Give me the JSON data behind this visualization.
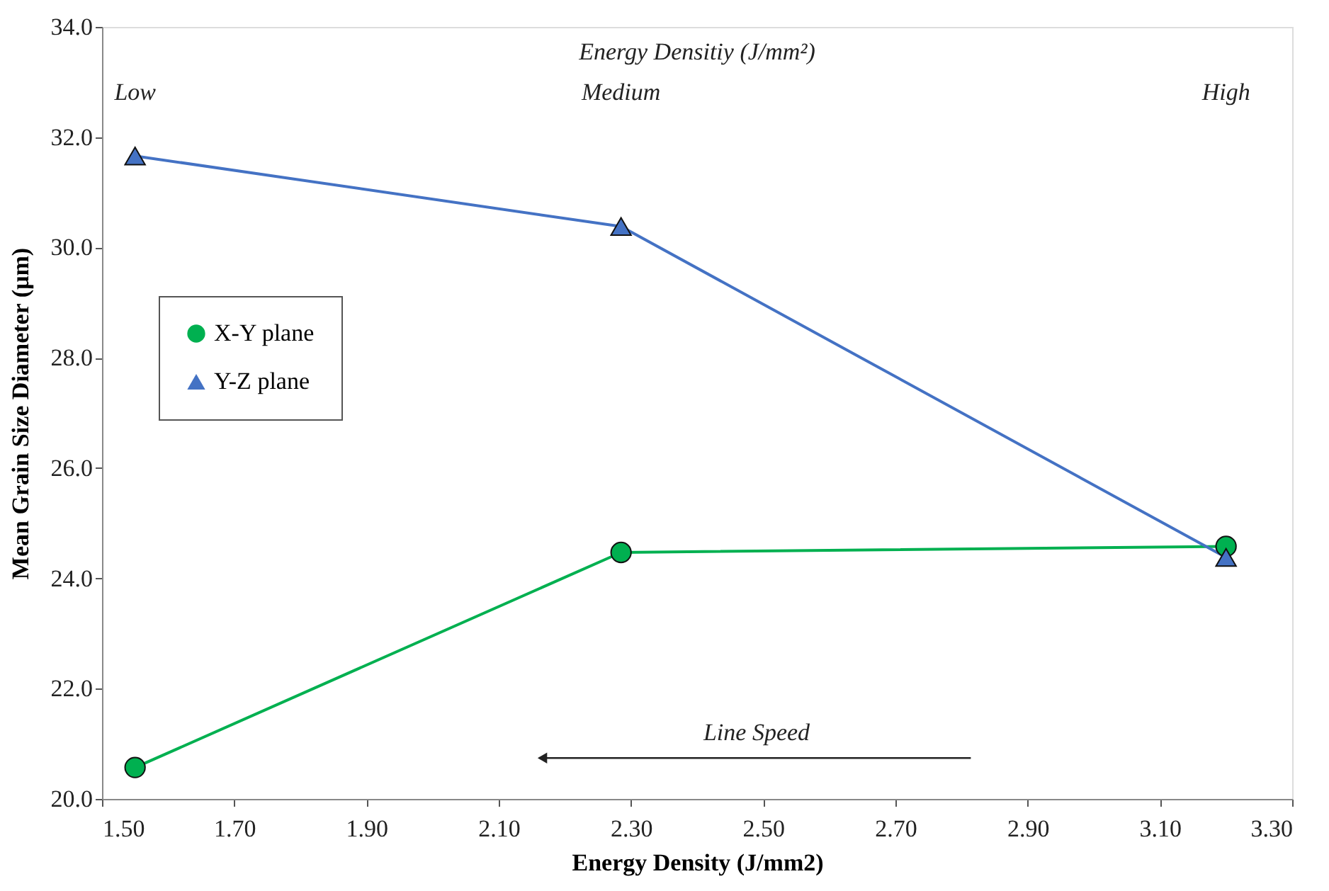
{
  "chart_data": {
    "type": "line",
    "title": "Energy Densitiy (J/mm²)",
    "xlabel": "Energy Density (J/mm2)",
    "ylabel": "Mean Grain Size Diameter  (µm)",
    "x": [
      1.55,
      2.285,
      3.2
    ],
    "series": [
      {
        "name": "X-Y plane",
        "color": "#00b050",
        "marker": "circle",
        "values": [
          20.57,
          24.47,
          24.58
        ]
      },
      {
        "name": "Y-Z plane",
        "color": "#4472c4",
        "marker": "triangle",
        "values": [
          31.66,
          30.38,
          24.38
        ]
      }
    ],
    "xlim": [
      1.5,
      3.3
    ],
    "xticks": [
      {
        "value": 1.5,
        "label": "1.50"
      },
      {
        "value": 1.7,
        "label": "1.70"
      },
      {
        "value": 1.9,
        "label": "1.90"
      },
      {
        "value": 2.1,
        "label": "2.10"
      },
      {
        "value": 2.3,
        "label": "2.30"
      },
      {
        "value": 2.5,
        "label": "2.50"
      },
      {
        "value": 2.7,
        "label": "2.70"
      },
      {
        "value": 2.9,
        "label": "2.90"
      },
      {
        "value": 3.1,
        "label": "3.10"
      },
      {
        "value": 3.3,
        "label": "3.30"
      }
    ],
    "ylim": [
      20,
      34
    ],
    "yticks": [
      {
        "value": 20,
        "label": "20.0"
      },
      {
        "value": 22,
        "label": "22.0"
      },
      {
        "value": 24,
        "label": "24.0"
      },
      {
        "value": 26,
        "label": "26.0"
      },
      {
        "value": 28,
        "label": "28.0"
      },
      {
        "value": 30,
        "label": "30.0"
      },
      {
        "value": 32,
        "label": "32.0"
      },
      {
        "value": 34,
        "label": "34.0"
      }
    ],
    "annotations": [
      "Low",
      "Medium",
      "High",
      "Line Speed"
    ],
    "grid": false,
    "legend": "left",
    "line_style": "solid"
  }
}
